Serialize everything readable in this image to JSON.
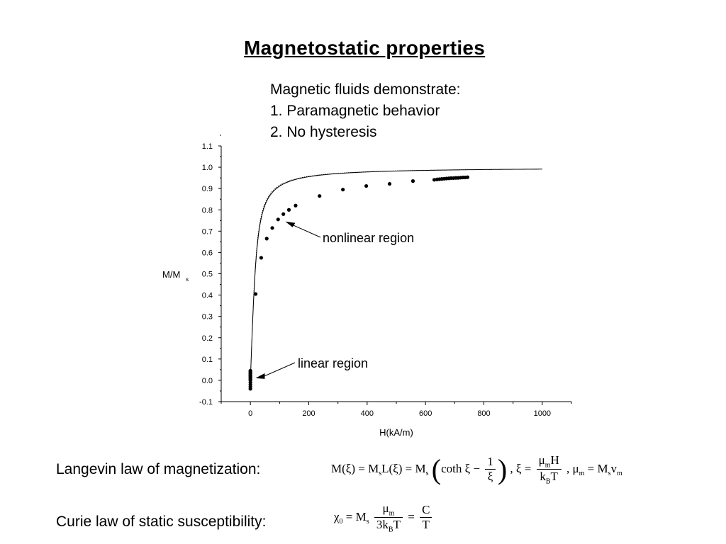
{
  "title": "Magnetostatic properties",
  "notes": [
    "Magnetic fluids demonstrate:",
    "1. Paramagnetic behavior",
    "2. No hysteresis"
  ],
  "chart_data": {
    "type": "scatter",
    "xlabel": "H(kA/m)",
    "ylabel": "M/M",
    "ylabel_sub": "s",
    "xlim": [
      -100,
      1100
    ],
    "ylim": [
      -0.1,
      1.1
    ],
    "xticks": [
      0,
      200,
      400,
      600,
      800,
      1000
    ],
    "yticks": [
      -0.1,
      0.0,
      0.1,
      0.2,
      0.3,
      0.4,
      0.5,
      0.6,
      0.7,
      0.8,
      0.9,
      1.0,
      1.1
    ],
    "grid": false,
    "series": [
      {
        "kind": "points",
        "x": [
          0,
          0,
          0,
          0,
          0,
          0,
          0,
          0,
          0,
          0,
          0,
          0,
          0,
          0,
          18,
          37,
          56,
          75,
          95,
          113,
          132,
          155,
          237,
          317,
          397,
          477,
          557,
          630,
          640,
          648,
          656,
          664,
          672,
          680,
          688,
          696,
          704,
          712,
          720,
          728,
          736,
          744
        ],
        "y": [
          -0.04,
          -0.03,
          -0.02,
          -0.01,
          0.0,
          0.005,
          0.01,
          0.015,
          0.02,
          0.025,
          0.03,
          0.035,
          0.04,
          0.045,
          0.405,
          0.575,
          0.665,
          0.715,
          0.755,
          0.78,
          0.8,
          0.82,
          0.865,
          0.895,
          0.912,
          0.922,
          0.935,
          0.941,
          0.943,
          0.944,
          0.945,
          0.946,
          0.947,
          0.948,
          0.949,
          0.949,
          0.95,
          0.95,
          0.951,
          0.952,
          0.952,
          0.953
        ]
      },
      {
        "kind": "line",
        "style": "solid",
        "langevin_a": 8.9
      },
      {
        "kind": "line",
        "style": "dotted",
        "langevin_a": 8.5
      }
    ],
    "annotations": [
      {
        "text": "nonlinear region",
        "target": [
          115,
          0.745
        ]
      },
      {
        "text": "linear region",
        "target": [
          8,
          0.0
        ]
      }
    ]
  },
  "laws": [
    {
      "label": "Langevin law of magnetization:"
    },
    {
      "label": "Curie law of static susceptibility:"
    }
  ],
  "formulas": {
    "langevin": {
      "lhs": "M(ξ) = M",
      "s1": "s",
      "mid": "L(ξ) = M",
      "s2": "s",
      "coth": "coth ξ −",
      "num1": "1",
      "den1": "ξ",
      "xi": ",  ξ =",
      "num2": "μ",
      "num2_sub": "m",
      "num2_tail": "H",
      "den2": "k",
      "den2_sub": "B",
      "den2_tail": "T",
      "mu": ", μ",
      "mu_sub": "m",
      "mu_eq": " = M",
      "mu_s": "s",
      "mu_v": "v",
      "mu_v_sub": "m"
    },
    "curie": {
      "chi": "χ",
      "chi_sub": "0",
      "eq": " = M",
      "s": "s",
      "num": "μ",
      "num_sub": "m",
      "den": "3k",
      "den_sub": "B",
      "den_tail": "T",
      "eq2": "=",
      "num3": "C",
      "den3": "T"
    }
  }
}
